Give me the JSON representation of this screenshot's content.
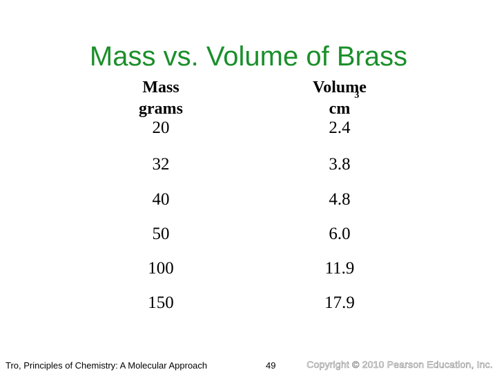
{
  "slide": {
    "title": "Mass vs. Volume of Brass"
  },
  "table": {
    "headers": {
      "mass": {
        "line1": "Mass",
        "line2": "grams"
      },
      "volume": {
        "line1": "Volume",
        "line2": "cm",
        "superscript": "3"
      }
    },
    "rows": [
      {
        "mass": "20",
        "volume": "2.4"
      },
      {
        "mass": "32",
        "volume": "3.8"
      },
      {
        "mass": "40",
        "volume": "4.8"
      },
      {
        "mass": "50",
        "volume": "6.0"
      },
      {
        "mass": "100",
        "volume": "11.9"
      },
      {
        "mass": "150",
        "volume": "17.9"
      }
    ]
  },
  "footer": {
    "source": "Tro, Principles of Chemistry: A Molecular Approach",
    "page_number": "49",
    "copyright": "Copyright © 2010 Pearson Education, Inc."
  },
  "colors": {
    "title": "#1a8f2a",
    "text": "#000000",
    "background": "#ffffff"
  }
}
